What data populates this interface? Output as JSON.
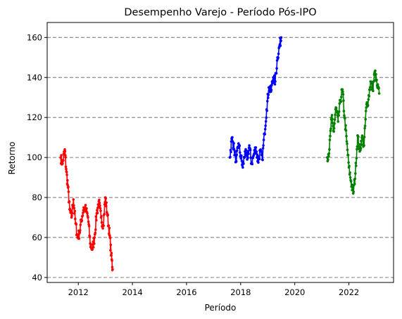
{
  "chart_data": {
    "type": "line",
    "title": "Desempenho Varejo - Período Pós-IPO",
    "xlabel": "Período",
    "ylabel": "Retorno",
    "xlim": [
      2010.85,
      2023.65
    ],
    "ylim": [
      37.5,
      167.5
    ],
    "xticks": [
      2012,
      2014,
      2016,
      2018,
      2020,
      2022
    ],
    "yticks": [
      40,
      60,
      80,
      100,
      120,
      140,
      160
    ],
    "grid": "horizontal dashed",
    "legend": "none",
    "series": [
      {
        "color": "#ff0000",
        "x": [
          2011.35,
          2011.42,
          2011.5,
          2011.56,
          2011.62,
          2011.68,
          2011.75,
          2011.82,
          2011.9,
          2011.97,
          2012.04,
          2012.12,
          2012.2,
          2012.28,
          2012.36,
          2012.44,
          2012.52,
          2012.6,
          2012.68,
          2012.76,
          2012.84,
          2012.92,
          2013.0,
          2013.08,
          2013.16,
          2013.22,
          2013.27
        ],
        "y": [
          100,
          97,
          104,
          93,
          85,
          74,
          70,
          79,
          67,
          60,
          62,
          69,
          75,
          74,
          70,
          57,
          54,
          60,
          72,
          78,
          70,
          66,
          80,
          71,
          61,
          51,
          44
        ]
      },
      {
        "color": "#0000ff",
        "x": [
          2017.6,
          2017.68,
          2017.76,
          2017.84,
          2017.92,
          2018.0,
          2018.08,
          2018.16,
          2018.24,
          2018.32,
          2018.4,
          2018.48,
          2018.56,
          2018.64,
          2018.72,
          2018.8,
          2018.88,
          2018.96,
          2019.04,
          2019.12,
          2019.2,
          2019.28,
          2019.36,
          2019.44,
          2019.5
        ],
        "y": [
          100,
          110,
          104,
          98,
          107,
          101,
          95,
          103,
          99,
          106,
          97,
          101,
          105,
          98,
          103,
          99,
          112,
          124,
          135,
          133,
          140,
          138,
          150,
          156,
          160
        ]
      },
      {
        "color": "#008000",
        "x": [
          2021.2,
          2021.28,
          2021.36,
          2021.44,
          2021.52,
          2021.6,
          2021.68,
          2021.76,
          2021.84,
          2021.92,
          2022.0,
          2022.08,
          2022.16,
          2022.24,
          2022.32,
          2022.4,
          2022.48,
          2022.56,
          2022.64,
          2022.72,
          2022.8,
          2022.88,
          2022.96,
          2023.04,
          2023.12
        ],
        "y": [
          100,
          104,
          120,
          113,
          125,
          118,
          128,
          134,
          120,
          108,
          95,
          88,
          82,
          92,
          111,
          103,
          110,
          106,
          125,
          129,
          138,
          134,
          143,
          136,
          132
        ]
      }
    ]
  }
}
